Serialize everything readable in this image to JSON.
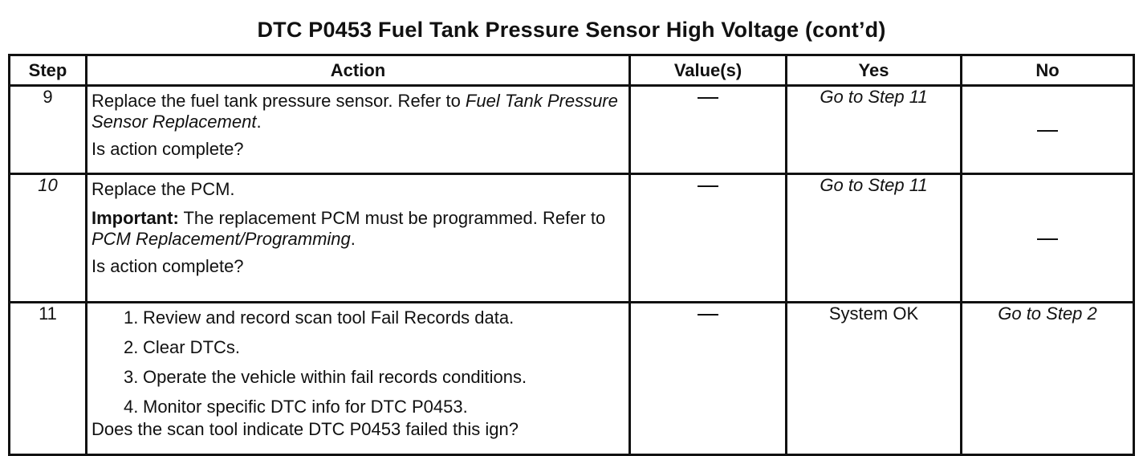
{
  "title": "DTC P0453 Fuel Tank Pressure Sensor High Voltage (cont’d)",
  "headers": {
    "step": "Step",
    "action": "Action",
    "values": "Value(s)",
    "yes": "Yes",
    "no": "No"
  },
  "rows": [
    {
      "step": "9",
      "action_text": "Replace the fuel tank pressure sensor. Refer to ",
      "action_ref": "Fuel Tank Pressure Sensor Replacement",
      "action_end": ".",
      "question": "Is action complete?",
      "value": "—",
      "yes": "Go to Step 11",
      "no": "—"
    },
    {
      "step": "10",
      "action_text": "Replace the PCM.",
      "important_label": "Important:",
      "important_text": " The replacement PCM must be programmed. Refer to ",
      "important_ref": "PCM Replacement/Programming",
      "important_end": ".",
      "question": "Is action complete?",
      "value": "—",
      "yes": "Go to Step 11",
      "no": "—"
    },
    {
      "step": "11",
      "substeps": [
        {
          "num": "1.",
          "text": "Review and record scan tool Fail Records data."
        },
        {
          "num": "2.",
          "text": "Clear DTCs."
        },
        {
          "num": "3.",
          "text": "Operate the vehicle within fail records conditions."
        },
        {
          "num": "4.",
          "text": "Monitor specific DTC info for DTC P0453."
        }
      ],
      "question": "Does the scan tool indicate DTC P0453 failed this ign?",
      "value": "—",
      "yes": "System OK",
      "no": "Go to Step 2"
    }
  ]
}
